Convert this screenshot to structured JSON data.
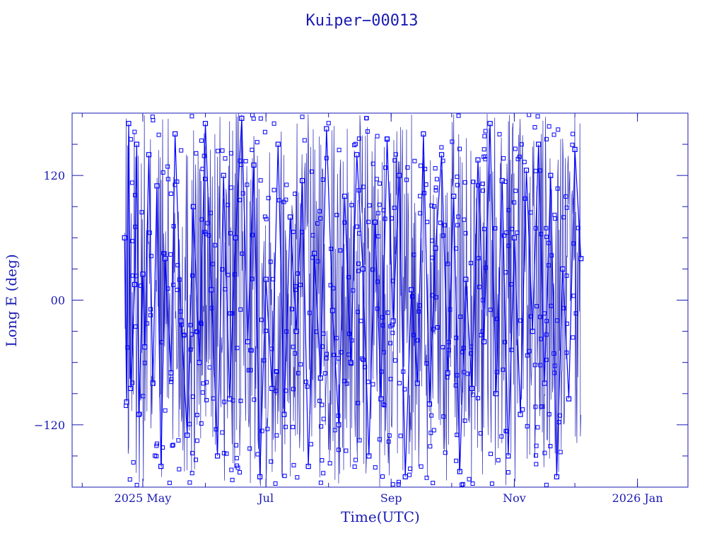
{
  "chart_data": {
    "type": "line",
    "title": "Kuiper−00013",
    "xlabel": "Time(UTC)",
    "ylabel": "Long E (deg)",
    "x_type": "date",
    "xlim": [
      "2025-03-27",
      "2026-01-26"
    ],
    "ylim": [
      -180,
      180
    ],
    "x_ticks": [
      {
        "date": "2025-05-01",
        "label": "2025 May"
      },
      {
        "date": "2025-07-01",
        "label": "Jul"
      },
      {
        "date": "2025-09-01",
        "label": "Sep"
      },
      {
        "date": "2025-11-01",
        "label": "Nov"
      },
      {
        "date": "2026-01-01",
        "label": "2026 Jan"
      }
    ],
    "y_ticks": [
      {
        "value": 120,
        "label": "120"
      },
      {
        "value": 0,
        "label": "00"
      },
      {
        "value": -120,
        "label": "−120"
      }
    ],
    "data_start": "2025-04-22",
    "data_end": "2025-12-04",
    "series": [
      {
        "color": "#0000ff",
        "marker": "square",
        "x": [
          "2025-04-22",
          "2025-04-23",
          "2025-04-24",
          "2025-04-25",
          "2025-04-27",
          "2025-04-28",
          "2025-04-29",
          "2025-05-01",
          "2025-05-02",
          "2025-05-04",
          "2025-05-06",
          "2025-05-08",
          "2025-05-10",
          "2025-05-12",
          "2025-05-15",
          "2025-05-17",
          "2025-05-20",
          "2025-05-23",
          "2025-05-26",
          "2025-05-29",
          "2025-06-01",
          "2025-06-04",
          "2025-06-07",
          "2025-06-10",
          "2025-06-13",
          "2025-06-16",
          "2025-06-19",
          "2025-06-22",
          "2025-06-25",
          "2025-06-28",
          "2025-07-01",
          "2025-07-04",
          "2025-07-07",
          "2025-07-10",
          "2025-07-13",
          "2025-07-16",
          "2025-07-19",
          "2025-07-22",
          "2025-07-25",
          "2025-07-28",
          "2025-07-31",
          "2025-08-03",
          "2025-08-06",
          "2025-08-09",
          "2025-08-12",
          "2025-08-15",
          "2025-08-18",
          "2025-08-21",
          "2025-08-24",
          "2025-08-27",
          "2025-08-30",
          "2025-09-02",
          "2025-09-05",
          "2025-09-08",
          "2025-09-11",
          "2025-09-14",
          "2025-09-17",
          "2025-09-20",
          "2025-09-23",
          "2025-09-26",
          "2025-09-29",
          "2025-10-02",
          "2025-10-05",
          "2025-10-08",
          "2025-10-11",
          "2025-10-14",
          "2025-10-17",
          "2025-10-20",
          "2025-10-23",
          "2025-10-26",
          "2025-10-29",
          "2025-11-01",
          "2025-11-04",
          "2025-11-07",
          "2025-11-10",
          "2025-11-13",
          "2025-11-16",
          "2025-11-19",
          "2025-11-22",
          "2025-11-25",
          "2025-11-28",
          "2025-12-01",
          "2025-12-04"
        ],
        "y": [
          60,
          -98,
          170,
          -85,
          15,
          150,
          -110,
          25,
          -45,
          140,
          -80,
          110,
          -160,
          40,
          -70,
          160,
          -20,
          -130,
          90,
          -60,
          170,
          10,
          -150,
          120,
          -95,
          60,
          175,
          -40,
          130,
          -170,
          20,
          -85,
          150,
          -110,
          80,
          -30,
          115,
          -160,
          45,
          -75,
          165,
          -10,
          -120,
          100,
          -60,
          140,
          30,
          -150,
          75,
          -95,
          155,
          -20,
          120,
          -170,
          10,
          -80,
          160,
          -100,
          50,
          140,
          -70,
          100,
          -165,
          20,
          -85,
          135,
          -40,
          170,
          -90,
          115,
          -150,
          60,
          -110,
          125,
          -30,
          150,
          -80,
          120,
          -170,
          30,
          -95,
          145,
          40
        ]
      }
    ]
  }
}
